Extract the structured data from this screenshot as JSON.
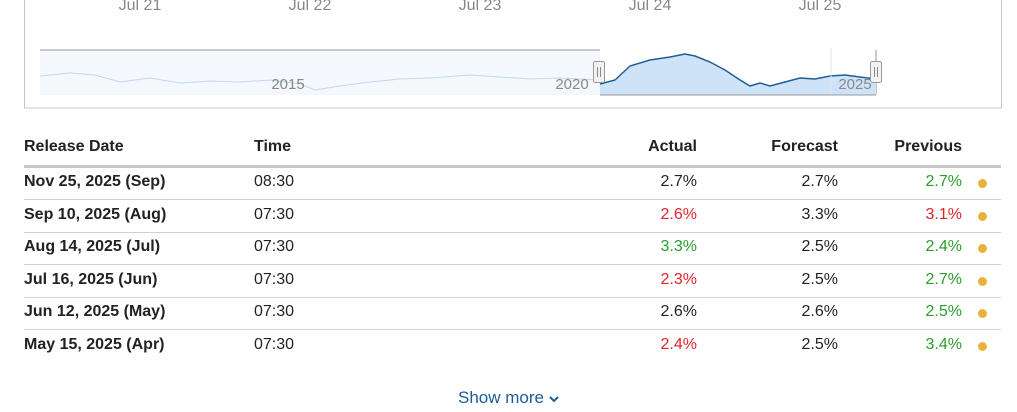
{
  "navigator": {
    "top_axis_labels": [
      "Jul 21",
      "Jul 22",
      "Jul 23",
      "Jul 24",
      "Jul 25"
    ],
    "year_labels": [
      "2015",
      "2020",
      "2025"
    ]
  },
  "table": {
    "headers": [
      "Release Date",
      "Time",
      "Actual",
      "Forecast",
      "Previous"
    ],
    "rows": [
      {
        "release_date": "Nov 25, 2025 (Sep)",
        "time": "08:30",
        "actual": "2.7%",
        "forecast": "2.7%",
        "previous": "2.7%",
        "actual_color": "#222222",
        "previous_color": "#2a9d2a"
      },
      {
        "release_date": "Sep 10, 2025 (Aug)",
        "time": "07:30",
        "actual": "2.6%",
        "forecast": "3.3%",
        "previous": "3.1%",
        "actual_color": "#e0242b",
        "previous_color": "#e0242b"
      },
      {
        "release_date": "Aug 14, 2025 (Jul)",
        "time": "07:30",
        "actual": "3.3%",
        "forecast": "2.5%",
        "previous": "2.4%",
        "actual_color": "#2a9d2a",
        "previous_color": "#2a9d2a"
      },
      {
        "release_date": "Jul 16, 2025 (Jun)",
        "time": "07:30",
        "actual": "2.3%",
        "forecast": "2.5%",
        "previous": "2.7%",
        "actual_color": "#e0242b",
        "previous_color": "#2a9d2a"
      },
      {
        "release_date": "Jun 12, 2025 (May)",
        "time": "07:30",
        "actual": "2.6%",
        "forecast": "2.6%",
        "previous": "2.5%",
        "actual_color": "#222222",
        "previous_color": "#2a9d2a"
      },
      {
        "release_date": "May 15, 2025 (Apr)",
        "time": "07:30",
        "actual": "2.4%",
        "forecast": "2.5%",
        "previous": "3.4%",
        "actual_color": "#e0242b",
        "previous_color": "#2a9d2a"
      }
    ]
  },
  "show_more": "Show more"
}
